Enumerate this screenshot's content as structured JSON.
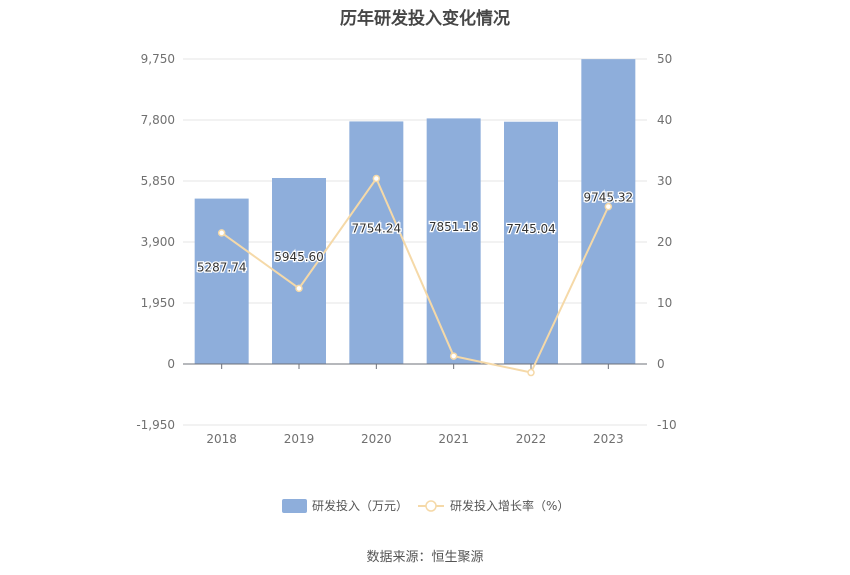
{
  "chart_data": {
    "type": "bar",
    "title": "历年研发投入变化情况",
    "categories": [
      "2018",
      "2019",
      "2020",
      "2021",
      "2022",
      "2023"
    ],
    "series": [
      {
        "name": "研发投入（万元）",
        "type": "bar",
        "axis": "left",
        "values": [
          5287.74,
          5945.6,
          7754.24,
          7851.18,
          7745.04,
          9745.32
        ],
        "labels": [
          "5287.74",
          "5945.60",
          "7754.24",
          "7851.18",
          "7745.04",
          "9745.32"
        ],
        "color": "#8eaedb"
      },
      {
        "name": "研发投入增长率（%）",
        "type": "line",
        "axis": "right",
        "values": [
          21.5,
          12.4,
          30.4,
          1.3,
          -1.4,
          25.8
        ],
        "color": "#f5d9a8"
      }
    ],
    "y_left": {
      "ylim": [
        -1950,
        9750
      ],
      "ticks": [
        "-1,950",
        "0",
        "1,950",
        "3,900",
        "5,850",
        "7,800",
        "9,750"
      ],
      "tick_values": [
        -1950,
        0,
        1950,
        3900,
        5850,
        7800,
        9750
      ]
    },
    "y_right": {
      "ylim": [
        -10,
        50
      ],
      "ticks": [
        "-10",
        "0",
        "10",
        "20",
        "30",
        "40",
        "50"
      ],
      "tick_values": [
        -10,
        0,
        10,
        20,
        30,
        40,
        50
      ]
    },
    "grid": true,
    "legend_position": "bottom-center"
  },
  "source": "数据来源：恒生聚源"
}
